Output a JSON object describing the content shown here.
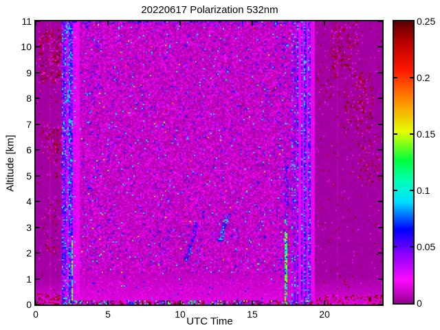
{
  "chart_data": {
    "type": "heatmap",
    "title": "20220617 Polarization 532nm",
    "xlabel": "UTC Time",
    "ylabel": "Altitude [km]",
    "x_range": [
      0,
      24
    ],
    "y_range": [
      0,
      11
    ],
    "x_ticks": [
      0,
      5,
      10,
      15,
      20
    ],
    "x_tick_labels": [
      "0",
      "5",
      "10",
      "15",
      "20"
    ],
    "y_ticks": [
      0,
      1,
      2,
      3,
      4,
      5,
      6,
      7,
      8,
      9,
      10,
      11
    ],
    "y_tick_labels": [
      "0",
      "1",
      "2",
      "3",
      "4",
      "5",
      "6",
      "7",
      "8",
      "9",
      "10",
      "11"
    ],
    "colorbar": {
      "min": 0,
      "max": 0.25,
      "ticks": [
        0,
        0.05,
        0.1,
        0.15,
        0.2,
        0.25
      ],
      "tick_labels": [
        "0",
        "0.05",
        "0.1",
        "0.15",
        "0.2",
        "0.25"
      ]
    },
    "colormap_stops": [
      [
        0.0,
        150,
        0,
        150
      ],
      [
        0.02,
        255,
        10,
        255
      ],
      [
        0.045,
        130,
        0,
        255
      ],
      [
        0.065,
        0,
        0,
        255
      ],
      [
        0.09,
        0,
        225,
        255
      ],
      [
        0.107,
        0,
        255,
        190
      ],
      [
        0.127,
        0,
        255,
        60
      ],
      [
        0.152,
        230,
        255,
        0
      ],
      [
        0.18,
        255,
        140,
        0
      ],
      [
        0.207,
        255,
        25,
        0
      ],
      [
        0.232,
        185,
        0,
        0
      ],
      [
        0.25,
        92,
        0,
        0
      ]
    ],
    "description": "Lidar volume depolarization ratio vs UTC time and altitude; mostly low values (magenta, <0.02) with instrument calibration stripe bundles, near-surface green streaks, and maroon speckle clusters in smooth early/late periods.",
    "render": {
      "seed": 42,
      "smooth_left_end": 1.84,
      "smooth_right_start": 19.33,
      "vlines": [
        [
          0.99,
          0.02,
          0.004
        ],
        [
          1.43,
          0.02,
          0.004
        ],
        [
          20.9,
          0.02,
          0.003
        ],
        [
          21.9,
          0.025,
          0.006
        ]
      ],
      "clusters": [
        [
          0.2,
          2.2,
          8.6,
          10.7,
          0.28
        ],
        [
          0.4,
          2.2,
          5.9,
          7.0,
          0.22
        ],
        [
          0.8,
          1.8,
          4.9,
          5.9,
          0.1
        ],
        [
          0.6,
          1.7,
          2.0,
          4.1,
          0.08
        ],
        [
          0.0,
          2.3,
          0.0,
          0.45,
          0.3
        ],
        [
          20.5,
          22.4,
          8.8,
          10.9,
          0.2
        ],
        [
          21.3,
          23.4,
          6.7,
          9.0,
          0.2
        ],
        [
          22.3,
          23.9,
          4.6,
          6.6,
          0.13
        ],
        [
          19.5,
          20.7,
          7.6,
          9.3,
          0.08
        ],
        [
          19.4,
          24.0,
          0.0,
          0.4,
          0.25
        ]
      ],
      "stripeA": {
        "bright": [
          1.84,
          3.05
        ],
        "columns": [
          [
            1.9,
            0.045,
            0.045
          ],
          [
            1.98,
            0.05,
            0.06
          ],
          [
            2.06,
            0.04,
            0.05
          ],
          [
            2.16,
            0.035,
            0.035
          ],
          [
            2.25,
            0.03,
            0.03
          ],
          [
            2.33,
            0.05,
            0.065
          ],
          [
            2.42,
            0.04,
            0.05
          ],
          [
            2.52,
            0.05,
            0.055
          ],
          [
            2.71,
            0.02,
            0.03
          ],
          [
            2.86,
            0.02,
            0.028
          ]
        ]
      },
      "stripeB": {
        "bright": [
          18.08,
          19.33
        ],
        "columns": [
          [
            17.75,
            0.03,
            0.04
          ],
          [
            17.95,
            0.03,
            0.045
          ],
          [
            18.15,
            0.045,
            0.055
          ],
          [
            18.28,
            0.04,
            0.06
          ],
          [
            18.45,
            0.04,
            0.05
          ],
          [
            18.6,
            0.045,
            0.065
          ],
          [
            18.75,
            0.04,
            0.05
          ],
          [
            18.9,
            0.035,
            0.045
          ],
          [
            19.02,
            0.035,
            0.055
          ]
        ]
      },
      "green_streaks": [
        [
          2.44,
          2.6,
          3.0
        ],
        [
          17.25,
          17.45,
          3.3
        ]
      ],
      "blue_cap": [
        17.2,
        17.5,
        3.3,
        5.7,
        0.3
      ],
      "diag_streaks": [
        [
          10.4,
          1.7,
          11.15,
          3.15,
          0.14,
          0.6,
          0.038,
          0.032
        ],
        [
          12.75,
          2.45,
          13.3,
          3.45,
          0.16,
          0.6,
          0.05,
          0.05
        ],
        [
          12.1,
          2.5,
          12.8,
          3.0,
          0.1,
          0.35,
          0.035,
          0.02
        ]
      ]
    }
  }
}
